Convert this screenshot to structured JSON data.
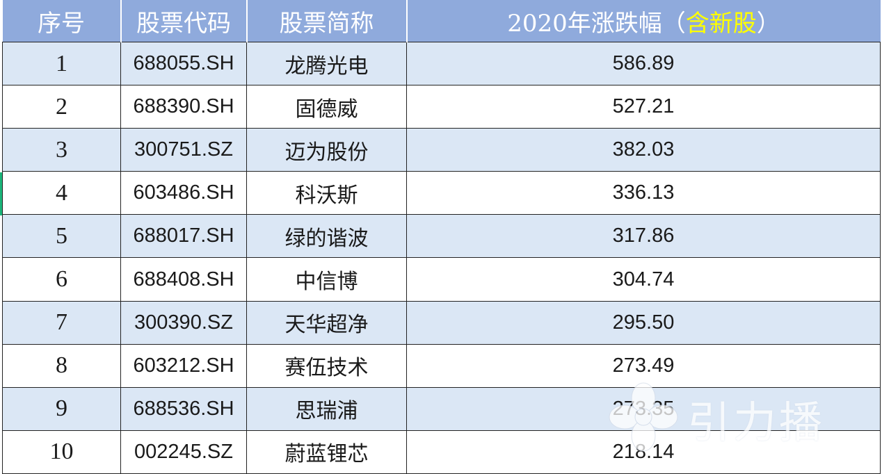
{
  "table": {
    "headers": {
      "index": "序号",
      "code": "股票代码",
      "name": "股票简称",
      "change_prefix": "2020年涨跌幅（",
      "change_highlight": "含新股",
      "change_suffix": "）"
    },
    "rows": [
      {
        "index": "1",
        "code": "688055.SH",
        "name": "龙腾光电",
        "change": "586.89"
      },
      {
        "index": "2",
        "code": "688390.SH",
        "name": "固德威",
        "change": "527.21"
      },
      {
        "index": "3",
        "code": "300751.SZ",
        "name": "迈为股份",
        "change": "382.03"
      },
      {
        "index": "4",
        "code": "603486.SH",
        "name": "科沃斯",
        "change": "336.13"
      },
      {
        "index": "5",
        "code": "688017.SH",
        "name": "绿的谐波",
        "change": "317.86"
      },
      {
        "index": "6",
        "code": "688408.SH",
        "name": "中信博",
        "change": "304.74"
      },
      {
        "index": "7",
        "code": "300390.SZ",
        "name": "天华超净",
        "change": "295.50"
      },
      {
        "index": "8",
        "code": "603212.SH",
        "name": "赛伍技术",
        "change": "273.49"
      },
      {
        "index": "9",
        "code": "688536.SH",
        "name": "思瑞浦",
        "change": "273.35"
      },
      {
        "index": "10",
        "code": "002245.SZ",
        "name": "蔚蓝锂芯",
        "change": "218.14"
      }
    ]
  },
  "watermark": {
    "text": "引力播",
    "icon": "flower-logo-icon"
  },
  "colors": {
    "header_bg": "#8faadc",
    "row_alt_bg": "#dbe7f5",
    "highlight": "#ffff00",
    "accent": "#1bb57a"
  }
}
